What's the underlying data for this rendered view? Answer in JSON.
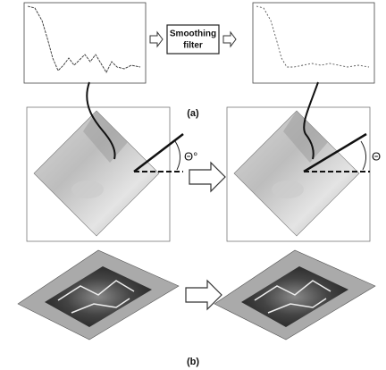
{
  "filter_box": {
    "lines": [
      "Smoothing",
      "filter"
    ]
  },
  "captions": {
    "a": "(a)",
    "b": "(b)"
  },
  "angles": {
    "left": "Θ°",
    "right": "Θ"
  }
}
